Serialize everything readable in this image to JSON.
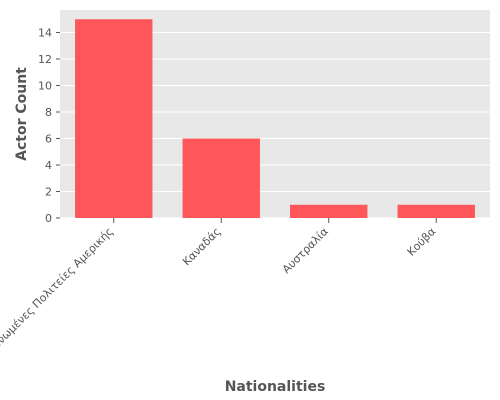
{
  "chart_data": {
    "type": "bar",
    "categories": [
      "Ηνωμένες Πολιτείες Αμερικής",
      "Καναδάς",
      "Αυστραλία",
      "Κούβα"
    ],
    "values": [
      15,
      6,
      1,
      1
    ],
    "xlabel": "Nationalities",
    "ylabel": "Actor Count",
    "ylim": [
      0,
      15.7
    ],
    "yticks": [
      0,
      2,
      4,
      6,
      8,
      10,
      12,
      14
    ],
    "grid": true,
    "legend": "none",
    "colors": {
      "bar": "#FF5659",
      "panel": "#E8E8E8",
      "grid": "#FFFFFF",
      "text": "#555555"
    }
  }
}
